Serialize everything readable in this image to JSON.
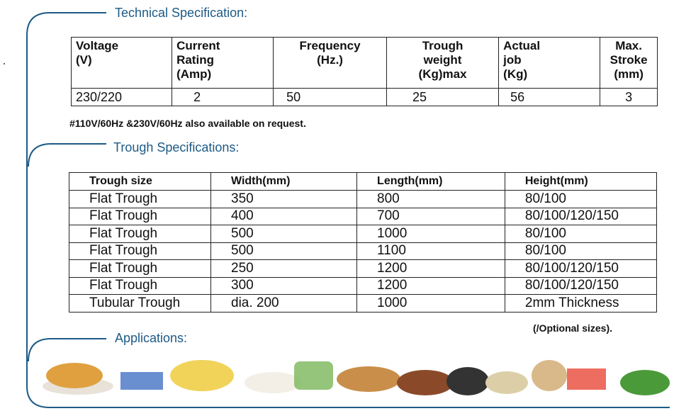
{
  "technical": {
    "title": "Technical Specification:",
    "headers": [
      [
        "Voltage",
        "(V)"
      ],
      [
        "Current",
        "Rating",
        "(Amp)"
      ],
      [
        "Frequency",
        "(Hz.)"
      ],
      [
        "Trough",
        "weight",
        "(Kg)max"
      ],
      [
        "Actual",
        "job",
        "(Kg)"
      ],
      [
        "Max.",
        "Stroke",
        "(mm)"
      ]
    ],
    "row": [
      "230/220",
      "2",
      "50",
      "25",
      "56",
      "3"
    ],
    "note": "#110V/60Hz &230V/60Hz also available on request."
  },
  "trough": {
    "title": "Trough Specifications:",
    "headers": [
      "Trough size",
      "Width(mm)",
      "Length(mm)",
      "Height(mm)"
    ],
    "rows": [
      [
        "Flat Trough",
        "350",
        "800",
        "80/100"
      ],
      [
        "Flat Trough",
        "400",
        "700",
        "80/100/120/150"
      ],
      [
        "Flat Trough",
        "500",
        "1000",
        "80/100"
      ],
      [
        "Flat Trough",
        "500",
        "1100",
        "80/100"
      ],
      [
        "Flat Trough",
        "250",
        "1200",
        "80/100/120/150"
      ],
      [
        "Flat Trough",
        "300",
        "1200",
        "80/100/120/150"
      ],
      [
        "Tubular Trough",
        "dia. 200",
        "1000",
        "2mm Thickness"
      ]
    ],
    "note": "(/Optional sizes)."
  },
  "applications": {
    "title": "Applications:"
  }
}
